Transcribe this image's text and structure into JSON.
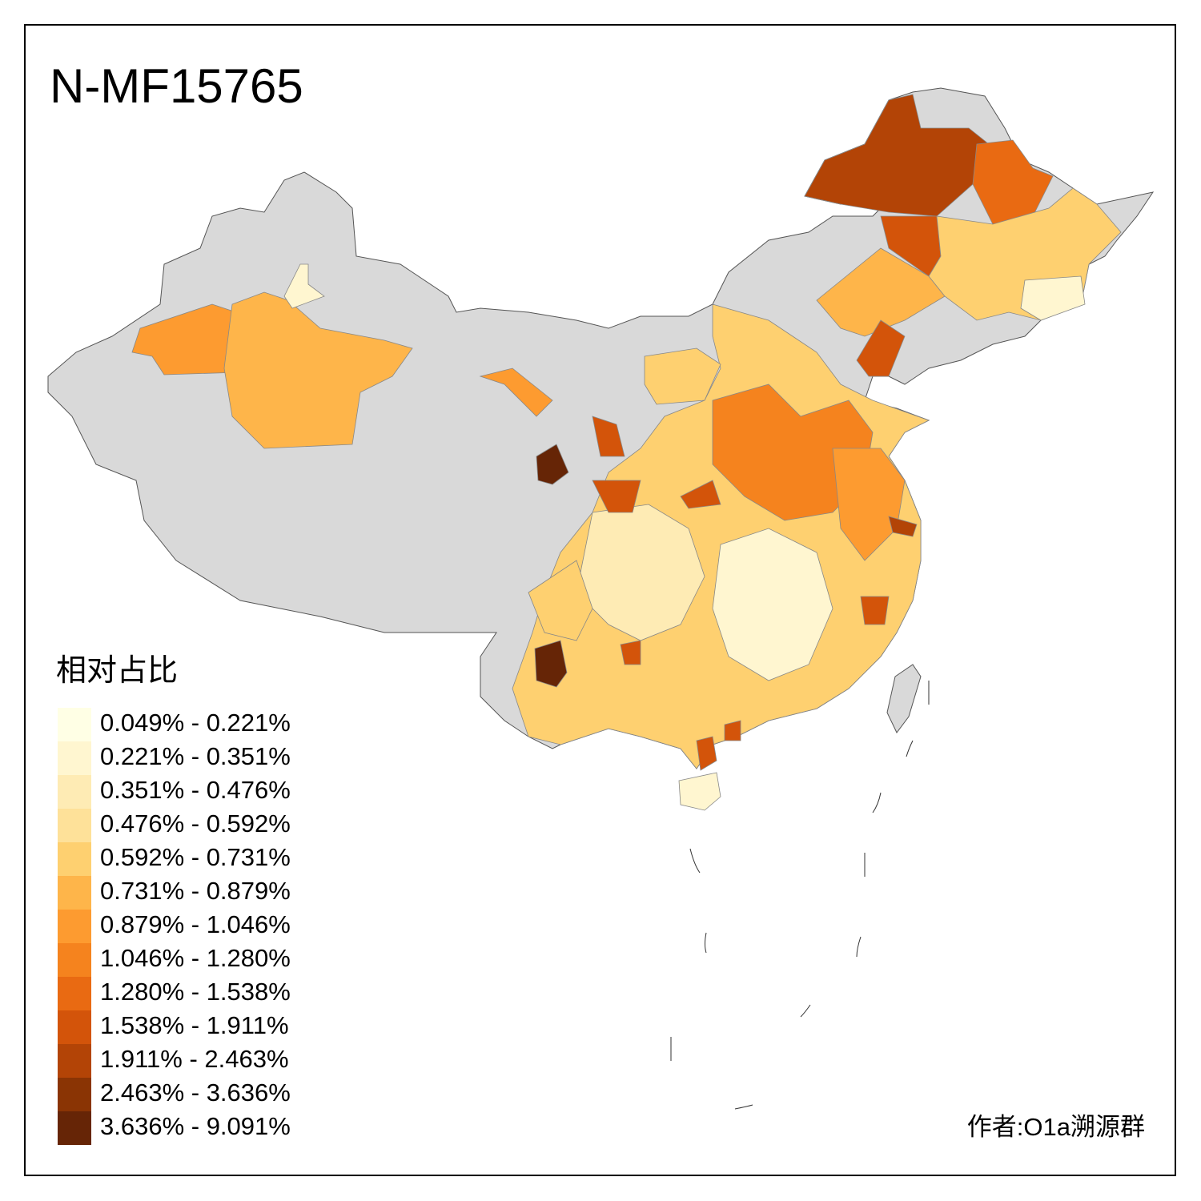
{
  "title": "N-MF15765",
  "legend": {
    "title": "相对占比",
    "items": [
      {
        "label": "0.049% - 0.221%",
        "color": "#ffffe5"
      },
      {
        "label": "0.221% - 0.351%",
        "color": "#fff6d0"
      },
      {
        "label": "0.351% - 0.476%",
        "color": "#feebb4"
      },
      {
        "label": "0.476% - 0.592%",
        "color": "#fee199"
      },
      {
        "label": "0.592% - 0.731%",
        "color": "#fed070"
      },
      {
        "label": "0.731% - 0.879%",
        "color": "#feb54a"
      },
      {
        "label": "0.879% - 1.046%",
        "color": "#fd9b30"
      },
      {
        "label": "1.046% - 1.280%",
        "color": "#f5831e"
      },
      {
        "label": "1.280% - 1.538%",
        "color": "#e96a12"
      },
      {
        "label": "1.538% - 1.911%",
        "color": "#d3540a"
      },
      {
        "label": "1.911% - 2.463%",
        "color": "#b34406"
      },
      {
        "label": "2.463% - 3.636%",
        "color": "#8a3404"
      },
      {
        "label": "3.636% - 9.091%",
        "color": "#662506"
      }
    ]
  },
  "credit": "作者:O1a溯源群"
}
